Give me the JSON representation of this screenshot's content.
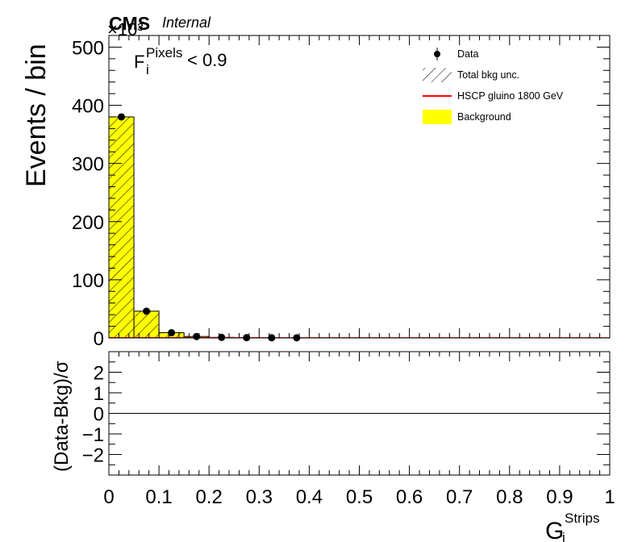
{
  "header": {
    "cms": "CMS",
    "internal": "Internal",
    "exponent": "×10³"
  },
  "annotation": {
    "base": "F",
    "sup": "Pixels",
    "sub": "i",
    "rest": "< 0.9"
  },
  "legend": [
    {
      "label": "Data",
      "style": "marker",
      "color": "#000000"
    },
    {
      "label": "Total bkg unc.",
      "style": "hatch",
      "color": "#000000"
    },
    {
      "label": "HSCP gluino 1800 GeV",
      "style": "line",
      "color": "#ff0000"
    },
    {
      "label": "Background",
      "style": "fill",
      "color": "#ffff00"
    }
  ],
  "chart_data": [
    {
      "type": "bar",
      "panel": "main",
      "ylabel": "Events / bin",
      "ylim": [
        0,
        520
      ],
      "yticks": [
        "0",
        "100",
        "200",
        "300",
        "400",
        "500"
      ],
      "bin_edges": [
        0,
        0.05,
        0.1,
        0.15,
        0.2,
        0.25,
        0.3,
        0.35,
        0.4,
        0.45,
        0.5,
        0.55,
        0.6,
        0.65,
        0.7,
        0.75,
        0.8,
        0.85,
        0.9,
        0.95,
        1.0
      ],
      "series": [
        {
          "name": "Background",
          "type": "bar",
          "color": "#ffff00",
          "values": [
            380,
            46,
            9,
            2.5,
            1,
            0.5,
            0.3,
            0.2,
            0,
            0,
            0,
            0,
            0,
            0,
            0,
            0,
            0,
            0,
            0,
            0
          ]
        },
        {
          "name": "HSCP gluino 1800 GeV",
          "type": "step",
          "color": "#ff0000",
          "values": [
            0.3,
            0.3,
            0.3,
            0.3,
            0.3,
            0.3,
            0.2,
            0.2,
            0.1,
            0.1,
            0.1,
            0.1,
            0.1,
            0.1,
            0.1,
            0.1,
            0.1,
            0.1,
            0.1,
            0.1
          ]
        },
        {
          "name": "Data",
          "type": "points",
          "color": "#000000",
          "x": [
            0.025,
            0.075,
            0.125,
            0.175,
            0.225,
            0.275,
            0.325,
            0.375
          ],
          "y": [
            380,
            46,
            9,
            2.5,
            1,
            0.5,
            0.3,
            0.2
          ]
        }
      ]
    },
    {
      "type": "line",
      "panel": "ratio",
      "ylabel": "(Data-Bkg)/σ",
      "ylim": [
        -3,
        3
      ],
      "yticks": [
        "−2",
        "−1",
        "0",
        "1",
        "2"
      ],
      "xlabel_base": "G",
      "xlabel_sup": "Strips",
      "xlabel_sub": "i",
      "xlim": [
        0,
        1
      ],
      "xticks": [
        "0",
        "0.1",
        "0.2",
        "0.3",
        "0.4",
        "0.5",
        "0.6",
        "0.7",
        "0.8",
        "0.9",
        "1"
      ],
      "reference_line": 0
    }
  ]
}
